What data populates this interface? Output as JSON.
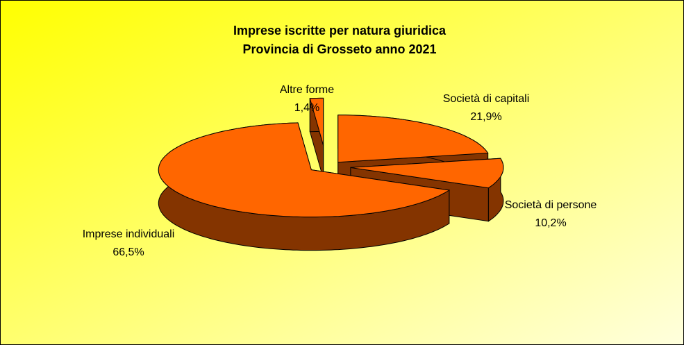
{
  "chart_data": {
    "type": "pie",
    "title": "Imprese iscritte per natura giuridica",
    "subtitle": "Provincia di Grosseto anno 2021",
    "categories": [
      "Società di capitali",
      "Società di persone",
      "Imprese individuali",
      "Altre forme"
    ],
    "values": [
      21.9,
      10.2,
      66.5,
      1.4
    ],
    "value_labels": [
      "21,9%",
      "10,2%",
      "66,5%",
      "1,4%"
    ],
    "color": "#ff6600",
    "side_color": "#843400"
  }
}
